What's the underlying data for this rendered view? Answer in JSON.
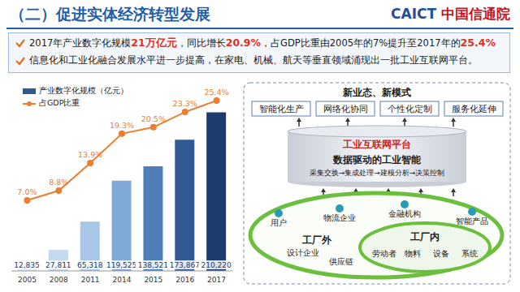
{
  "header": {
    "title": "（二）促进实体经济转型发展",
    "logo": [
      "CAICT",
      "中国信通院"
    ]
  },
  "bullets": [
    [
      {
        "text": "2017年产业数字化规模"
      },
      {
        "text": "21万亿元",
        "emphasis": true
      },
      {
        "text": "，同比增长"
      },
      {
        "text": "20.9%",
        "emphasis": true
      },
      {
        "text": "，占GDP比重由2005年的7%提升至2017年的"
      },
      {
        "text": "25.4%",
        "emphasis": true
      }
    ],
    [
      {
        "text": "信息化和工业化融合发展水平进一步提高，在家电、机械、航天等垂直领域涌现出一批工业互联网平台。"
      }
    ]
  ],
  "chart_data": {
    "type": "bar",
    "categories": [
      "2005",
      "2008",
      "2011",
      "2014",
      "2015",
      "2016",
      "2017"
    ],
    "series": [
      {
        "name": "产业数字化规模（亿元）",
        "type": "bar",
        "colors": [
          "#dce8f5",
          "#c4d8ee",
          "#a8c6e6",
          "#7fa9d6",
          "#4f7fb8",
          "#2f5a93",
          "#1c3c6e"
        ],
        "values": [
          12835,
          27811,
          65318,
          119525,
          138521,
          173867,
          210220
        ],
        "value_labels": [
          "12,835",
          "27,811",
          "65,318",
          "119,525",
          "138,521",
          "173,867",
          "210,220"
        ]
      },
      {
        "name": "占GDP比重",
        "type": "line",
        "axis": "y2",
        "color": "#ed7d31",
        "marker": "circle",
        "values": [
          7.0,
          8.8,
          13.9,
          19.3,
          20.5,
          23.3,
          25.4
        ],
        "value_labels": [
          "7.0%",
          "8.8%",
          "13.9%",
          "19.3%",
          "20.5%",
          "23.3%",
          "25.4%"
        ]
      }
    ],
    "ylim": [
      0,
      230000
    ],
    "y2lim": [
      -6,
      26
    ],
    "data_labels": true,
    "legend": "upper left",
    "tick_labels": "x"
  },
  "diagram": {
    "top_title": "新业态、新模式",
    "modes": [
      "智能化生产",
      "网络化协同",
      "个性化定制",
      "服务化延伸"
    ],
    "platform": "工业互联网平台",
    "intelligence": "数据驱动的工业智能",
    "process": "采集交换→集成处理→建模分析→决策控制",
    "outside": {
      "label": "工厂外",
      "nodes": [
        "用户",
        "物流企业",
        "金融机构",
        "智能产品",
        "设计企业",
        "供应链"
      ]
    },
    "inside": {
      "label": "工厂内",
      "nodes": [
        "劳动者",
        "物料",
        "设备",
        "系统"
      ]
    }
  }
}
